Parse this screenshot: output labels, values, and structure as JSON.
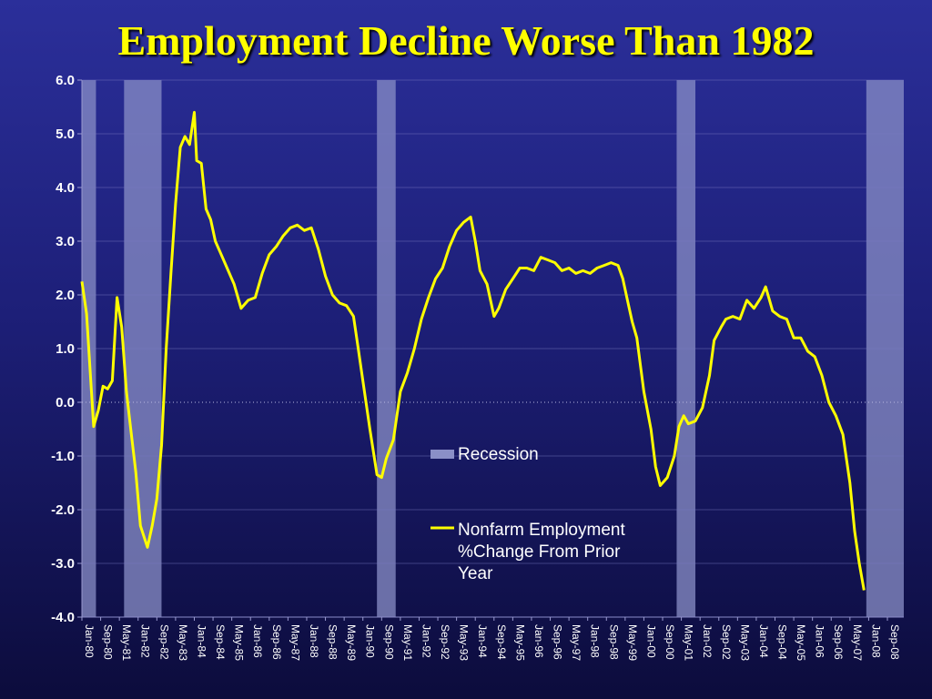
{
  "title": "Employment Decline Worse Than 1982",
  "colors": {
    "title": "#FFFF00",
    "line": "#FFFF00",
    "recession": "#8A8FC7",
    "text": "#FFFFFF",
    "background": "#1E2080"
  },
  "chart_data": {
    "type": "line",
    "title": "Employment Decline Worse Than 1982",
    "ylim": [
      -4.0,
      6.0
    ],
    "x_range": [
      "1980-01",
      "2009-04"
    ],
    "y_ticks": [
      "6.0",
      "5.0",
      "4.0",
      "3.0",
      "2.0",
      "1.0",
      "0.0",
      "-1.0",
      "-2.0",
      "-3.0",
      "-4.0"
    ],
    "x_ticks": [
      "Jan-80",
      "Sep-80",
      "May-81",
      "Jan-82",
      "Sep-82",
      "May-83",
      "Jan-84",
      "Sep-84",
      "May-85",
      "Jan-86",
      "Sep-86",
      "May-87",
      "Jan-88",
      "Sep-88",
      "May-89",
      "Jan-90",
      "Sep-90",
      "May-91",
      "Jan-92",
      "Sep-92",
      "May-93",
      "Jan-94",
      "Sep-94",
      "May-95",
      "Jan-96",
      "Sep-96",
      "May-97",
      "Jan-98",
      "Sep-98",
      "May-99",
      "Jan-00",
      "Sep-00",
      "May-01",
      "Jan-02",
      "Sep-02",
      "May-03",
      "Jan-04",
      "Sep-04",
      "May-05",
      "Jan-06",
      "Sep-06",
      "May-07",
      "Jan-08",
      "Sep-08"
    ],
    "grid": true,
    "legend_position": "center-right",
    "recessions": [
      [
        "1980-01",
        "1980-07"
      ],
      [
        "1981-07",
        "1982-11"
      ],
      [
        "1990-07",
        "1991-03"
      ],
      [
        "2001-03",
        "2001-11"
      ],
      [
        "2007-12",
        "2009-04"
      ]
    ],
    "series": [
      {
        "name": "Nonfarm Employment %Change From Prior Year",
        "points": [
          [
            "1980-01",
            2.25
          ],
          [
            "1980-03",
            1.65
          ],
          [
            "1980-06",
            -0.45
          ],
          [
            "1980-08",
            -0.15
          ],
          [
            "1980-10",
            0.3
          ],
          [
            "1980-12",
            0.25
          ],
          [
            "1981-02",
            0.4
          ],
          [
            "1981-04",
            1.95
          ],
          [
            "1981-06",
            1.4
          ],
          [
            "1981-08",
            0.2
          ],
          [
            "1981-10",
            -0.55
          ],
          [
            "1981-12",
            -1.3
          ],
          [
            "1982-02",
            -2.3
          ],
          [
            "1982-05",
            -2.7
          ],
          [
            "1982-07",
            -2.3
          ],
          [
            "1982-09",
            -1.8
          ],
          [
            "1982-11",
            -0.8
          ],
          [
            "1983-01",
            1.0
          ],
          [
            "1983-03",
            2.4
          ],
          [
            "1983-05",
            3.7
          ],
          [
            "1983-07",
            4.75
          ],
          [
            "1983-09",
            4.95
          ],
          [
            "1983-11",
            4.8
          ],
          [
            "1984-01",
            5.4
          ],
          [
            "1984-02",
            4.5
          ],
          [
            "1984-04",
            4.45
          ],
          [
            "1984-06",
            3.6
          ],
          [
            "1984-08",
            3.4
          ],
          [
            "1984-10",
            3.0
          ],
          [
            "1984-12",
            2.8
          ],
          [
            "1985-03",
            2.5
          ],
          [
            "1985-06",
            2.2
          ],
          [
            "1985-09",
            1.75
          ],
          [
            "1985-12",
            1.9
          ],
          [
            "1986-03",
            1.95
          ],
          [
            "1986-06",
            2.4
          ],
          [
            "1986-09",
            2.75
          ],
          [
            "1986-12",
            2.9
          ],
          [
            "1987-03",
            3.1
          ],
          [
            "1987-06",
            3.25
          ],
          [
            "1987-09",
            3.3
          ],
          [
            "1987-12",
            3.2
          ],
          [
            "1988-03",
            3.25
          ],
          [
            "1988-06",
            2.85
          ],
          [
            "1988-09",
            2.35
          ],
          [
            "1988-12",
            2.0
          ],
          [
            "1989-03",
            1.85
          ],
          [
            "1989-06",
            1.8
          ],
          [
            "1989-09",
            1.6
          ],
          [
            "1989-11",
            1.0
          ],
          [
            "1990-01",
            0.4
          ],
          [
            "1990-04",
            -0.5
          ],
          [
            "1990-07",
            -1.35
          ],
          [
            "1990-09",
            -1.4
          ],
          [
            "1990-11",
            -1.05
          ],
          [
            "1991-02",
            -0.7
          ],
          [
            "1991-05",
            0.2
          ],
          [
            "1991-08",
            0.55
          ],
          [
            "1991-11",
            1.0
          ],
          [
            "1992-02",
            1.55
          ],
          [
            "1992-05",
            1.95
          ],
          [
            "1992-08",
            2.3
          ],
          [
            "1992-11",
            2.5
          ],
          [
            "1993-02",
            2.9
          ],
          [
            "1993-05",
            3.2
          ],
          [
            "1993-08",
            3.35
          ],
          [
            "1993-11",
            3.45
          ],
          [
            "1994-01",
            3.0
          ],
          [
            "1994-03",
            2.45
          ],
          [
            "1994-06",
            2.2
          ],
          [
            "1994-09",
            1.6
          ],
          [
            "1994-11",
            1.75
          ],
          [
            "1995-02",
            2.1
          ],
          [
            "1995-05",
            2.3
          ],
          [
            "1995-08",
            2.5
          ],
          [
            "1995-11",
            2.5
          ],
          [
            "1996-02",
            2.45
          ],
          [
            "1996-05",
            2.7
          ],
          [
            "1996-08",
            2.65
          ],
          [
            "1996-11",
            2.6
          ],
          [
            "1997-02",
            2.45
          ],
          [
            "1997-05",
            2.5
          ],
          [
            "1997-08",
            2.4
          ],
          [
            "1997-11",
            2.45
          ],
          [
            "1998-02",
            2.4
          ],
          [
            "1998-05",
            2.5
          ],
          [
            "1998-08",
            2.55
          ],
          [
            "1998-11",
            2.6
          ],
          [
            "1999-02",
            2.55
          ],
          [
            "1999-04",
            2.3
          ],
          [
            "1999-06",
            1.9
          ],
          [
            "1999-08",
            1.5
          ],
          [
            "1999-10",
            1.2
          ],
          [
            "2000-01",
            0.2
          ],
          [
            "2000-04",
            -0.5
          ],
          [
            "2000-06",
            -1.2
          ],
          [
            "2000-08",
            -1.55
          ],
          [
            "2000-11",
            -1.4
          ],
          [
            "2001-02",
            -1.0
          ],
          [
            "2001-04",
            -0.45
          ],
          [
            "2001-06",
            -0.25
          ],
          [
            "2001-08",
            -0.4
          ],
          [
            "2001-11",
            -0.35
          ],
          [
            "2002-02",
            -0.1
          ],
          [
            "2002-05",
            0.5
          ],
          [
            "2002-07",
            1.15
          ],
          [
            "2002-10",
            1.4
          ],
          [
            "2002-12",
            1.55
          ],
          [
            "2003-03",
            1.6
          ],
          [
            "2003-06",
            1.55
          ],
          [
            "2003-09",
            1.9
          ],
          [
            "2003-12",
            1.75
          ],
          [
            "2004-03",
            1.95
          ],
          [
            "2004-05",
            2.15
          ],
          [
            "2004-08",
            1.7
          ],
          [
            "2004-11",
            1.6
          ],
          [
            "2005-02",
            1.55
          ],
          [
            "2005-05",
            1.2
          ],
          [
            "2005-08",
            1.2
          ],
          [
            "2005-11",
            0.95
          ],
          [
            "2006-02",
            0.85
          ],
          [
            "2006-05",
            0.5
          ],
          [
            "2006-08",
            0.0
          ],
          [
            "2006-11",
            -0.25
          ],
          [
            "2007-02",
            -0.6
          ],
          [
            "2007-05",
            -1.5
          ],
          [
            "2007-07",
            -2.4
          ],
          [
            "2007-09",
            -3.0
          ],
          [
            "2007-11",
            -3.5
          ]
        ]
      }
    ],
    "legend": [
      {
        "label": "Recession",
        "kind": "patch"
      },
      {
        "label": "Nonfarm Employment %Change From Prior Year",
        "kind": "line"
      }
    ]
  }
}
